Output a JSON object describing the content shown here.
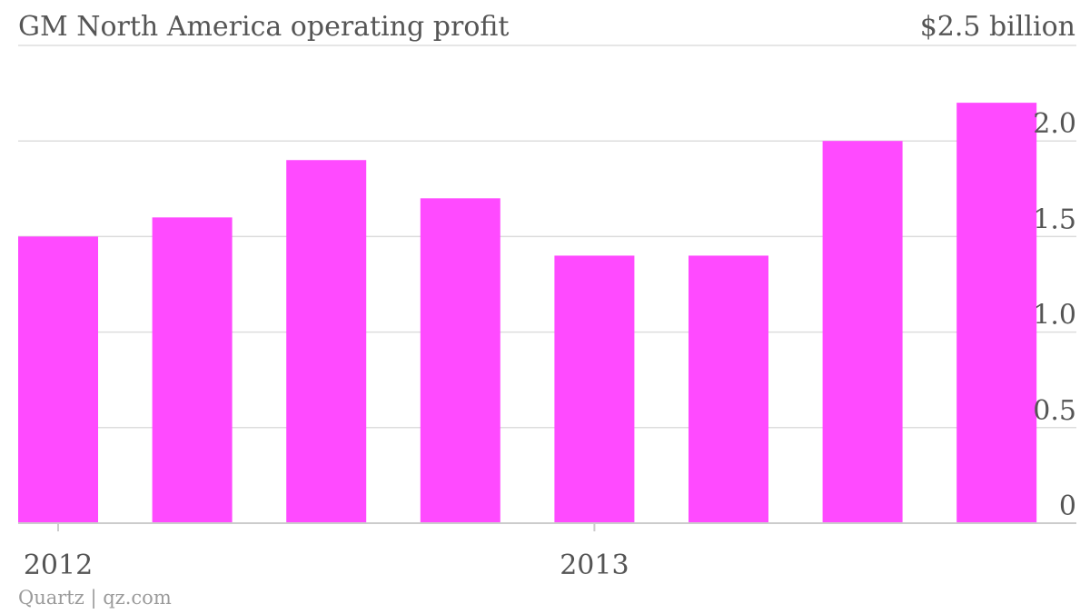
{
  "header": {
    "title": "GM North America operating profit",
    "y_max_label": "$2.5 billion"
  },
  "footer": {
    "credit": "Quartz | qz.com"
  },
  "colors": {
    "bar": "#ff4aff",
    "grid": "#dddddd",
    "text": "#555555",
    "credit": "#9b9b9b"
  },
  "chart_data": {
    "type": "bar",
    "title": "GM North America operating profit",
    "unit_label": "$2.5 billion",
    "values": [
      1.5,
      1.6,
      1.9,
      1.7,
      1.4,
      1.4,
      2.0,
      2.2
    ],
    "ylim": [
      0,
      2.5
    ],
    "y_ticks": [
      {
        "value": 0,
        "label": "0"
      },
      {
        "value": 0.5,
        "label": "0.5"
      },
      {
        "value": 1.0,
        "label": "1.0"
      },
      {
        "value": 1.5,
        "label": "1.5"
      },
      {
        "value": 2.0,
        "label": "2.0"
      }
    ],
    "x_ticks": [
      {
        "index": 0,
        "label": "2012"
      },
      {
        "index": 4,
        "label": "2013"
      }
    ],
    "grid": true,
    "y_axis_position": "right"
  }
}
